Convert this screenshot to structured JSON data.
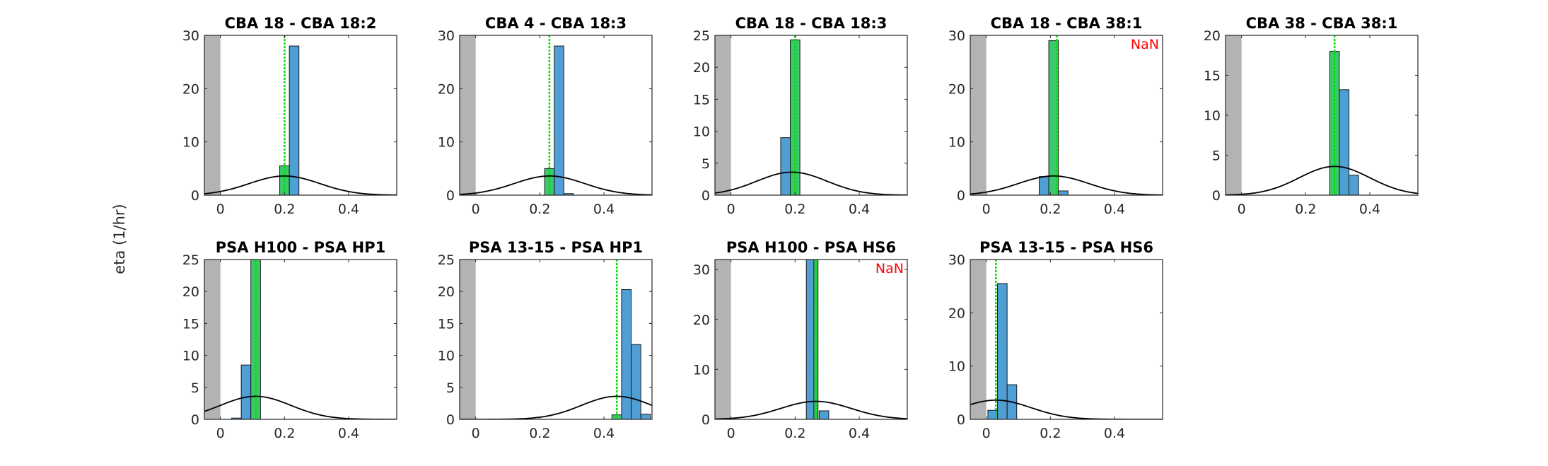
{
  "figure": {
    "ylabel": "eta (1/hr)",
    "colors": {
      "bar_fill": "#4f9fd4",
      "bar_edge": "#1a1a1a",
      "bar_highlight": "#3cc96b",
      "vline": "#00e000",
      "curve": "#000000",
      "shade": "#b3b3b3",
      "nan": "#ff0000",
      "axis": "#262626"
    }
  },
  "chart_data": [
    {
      "type": "bar",
      "title": "CBA 18 - CBA 18:2",
      "xlim": [
        -0.05,
        0.55
      ],
      "ylim": [
        0,
        30
      ],
      "yticks": [
        0,
        10,
        20,
        30
      ],
      "xticks": [
        0,
        0.2,
        0.4
      ],
      "shade_range": [
        -0.05,
        0
      ],
      "vline": 0.2,
      "note": "",
      "bin_width": 0.03,
      "bins": [
        {
          "x": 0.2,
          "v": 5.5,
          "highlight": true
        },
        {
          "x": 0.23,
          "v": 28
        }
      ],
      "curve": {
        "mean": 0.2,
        "sd": 0.11,
        "peak": 3.6
      }
    },
    {
      "type": "bar",
      "title": "CBA 4 - CBA 18:3",
      "xlim": [
        -0.05,
        0.55
      ],
      "ylim": [
        0,
        30
      ],
      "yticks": [
        0,
        10,
        20,
        30
      ],
      "xticks": [
        0,
        0.2,
        0.4
      ],
      "shade_range": [
        -0.05,
        0
      ],
      "vline": 0.23,
      "note": "",
      "bin_width": 0.03,
      "bins": [
        {
          "x": 0.23,
          "v": 5,
          "highlight": true
        },
        {
          "x": 0.26,
          "v": 28
        },
        {
          "x": 0.29,
          "v": 0.3
        }
      ],
      "curve": {
        "mean": 0.23,
        "sd": 0.11,
        "peak": 3.6
      }
    },
    {
      "type": "bar",
      "title": "CBA 18 - CBA 18:3",
      "xlim": [
        -0.05,
        0.55
      ],
      "ylim": [
        0,
        25
      ],
      "yticks": [
        0,
        5,
        10,
        15,
        20,
        25
      ],
      "xticks": [
        0,
        0.2,
        0.4
      ],
      "shade_range": [
        -0.05,
        0
      ],
      "vline": 0.2,
      "note": "",
      "bin_width": 0.03,
      "bins": [
        {
          "x": 0.17,
          "v": 9
        },
        {
          "x": 0.2,
          "v": 24.3,
          "highlight": true
        }
      ],
      "curve": {
        "mean": 0.19,
        "sd": 0.11,
        "peak": 3.6
      }
    },
    {
      "type": "bar",
      "title": "CBA 18 - CBA 38:1",
      "xlim": [
        -0.05,
        0.55
      ],
      "ylim": [
        0,
        30
      ],
      "yticks": [
        0,
        10,
        20,
        30
      ],
      "xticks": [
        0,
        0.2,
        0.4
      ],
      "shade_range": [
        -0.05,
        0
      ],
      "vline": 0.22,
      "note": "NaN",
      "bin_width": 0.03,
      "bins": [
        {
          "x": 0.18,
          "v": 3.5
        },
        {
          "x": 0.21,
          "v": 29,
          "highlight": true
        },
        {
          "x": 0.24,
          "v": 0.8
        }
      ],
      "curve": {
        "mean": 0.21,
        "sd": 0.11,
        "peak": 3.6
      }
    },
    {
      "type": "bar",
      "title": "CBA 38 - CBA 38:1",
      "xlim": [
        -0.05,
        0.55
      ],
      "ylim": [
        0,
        20
      ],
      "yticks": [
        0,
        5,
        10,
        15,
        20
      ],
      "xticks": [
        0,
        0.2,
        0.4
      ],
      "shade_range": [
        -0.05,
        0
      ],
      "vline": 0.29,
      "note": "",
      "bin_width": 0.03,
      "bins": [
        {
          "x": 0.29,
          "v": 18,
          "highlight": true
        },
        {
          "x": 0.32,
          "v": 13.2
        },
        {
          "x": 0.35,
          "v": 2.5
        }
      ],
      "curve": {
        "mean": 0.29,
        "sd": 0.11,
        "peak": 3.6
      }
    },
    {
      "type": "bar",
      "title": "PSA H100 - PSA HP1",
      "xlim": [
        -0.05,
        0.55
      ],
      "ylim": [
        0,
        25
      ],
      "yticks": [
        0,
        5,
        10,
        15,
        20,
        25
      ],
      "xticks": [
        0,
        0.2,
        0.4
      ],
      "shade_range": [
        -0.05,
        0
      ],
      "vline": 0.11,
      "note": "",
      "bin_width": 0.03,
      "bins": [
        {
          "x": 0.05,
          "v": 0.2
        },
        {
          "x": 0.08,
          "v": 8.5
        },
        {
          "x": 0.11,
          "v": 25,
          "highlight": true
        }
      ],
      "curve": {
        "mean": 0.11,
        "sd": 0.11,
        "peak": 3.6
      }
    },
    {
      "type": "bar",
      "title": "PSA 13-15 - PSA HP1",
      "xlim": [
        -0.05,
        0.55
      ],
      "ylim": [
        0,
        25
      ],
      "yticks": [
        0,
        5,
        10,
        15,
        20,
        25
      ],
      "xticks": [
        0,
        0.2,
        0.4
      ],
      "shade_range": [
        -0.05,
        0
      ],
      "vline": 0.44,
      "note": "",
      "bin_width": 0.03,
      "bins": [
        {
          "x": 0.44,
          "v": 0.7,
          "highlight": true
        },
        {
          "x": 0.47,
          "v": 20.3
        },
        {
          "x": 0.5,
          "v": 11.7
        },
        {
          "x": 0.53,
          "v": 0.8
        }
      ],
      "curve": {
        "mean": 0.44,
        "sd": 0.11,
        "peak": 3.6
      }
    },
    {
      "type": "bar",
      "title": "PSA H100 - PSA HS6",
      "xlim": [
        -0.05,
        0.55
      ],
      "ylim": [
        0,
        32
      ],
      "yticks": [
        0,
        10,
        20,
        30
      ],
      "xticks": [
        0,
        0.2,
        0.4
      ],
      "shade_range": [
        -0.05,
        0
      ],
      "vline": 0.265,
      "note": "NaN",
      "bin_width": 0.03,
      "bins": [
        {
          "x": 0.25,
          "v": 32
        },
        {
          "x": 0.265,
          "v": 32,
          "highlight": true,
          "w": 0.013
        },
        {
          "x": 0.29,
          "v": 1.7
        }
      ],
      "curve": {
        "mean": 0.265,
        "sd": 0.11,
        "peak": 3.6
      }
    },
    {
      "type": "bar",
      "title": "PSA 13-15 - PSA HS6",
      "xlim": [
        -0.05,
        0.55
      ],
      "ylim": [
        0,
        30
      ],
      "yticks": [
        0,
        10,
        20,
        30
      ],
      "xticks": [
        0,
        0.2,
        0.4
      ],
      "shade_range": [
        -0.05,
        0
      ],
      "vline": 0.03,
      "note": "",
      "bin_width": 0.03,
      "bins": [
        {
          "x": 0.02,
          "v": 1.7
        },
        {
          "x": 0.05,
          "v": 25.5
        },
        {
          "x": 0.08,
          "v": 6.5
        }
      ],
      "curve": {
        "mean": 0.03,
        "sd": 0.11,
        "peak": 3.6
      }
    }
  ]
}
